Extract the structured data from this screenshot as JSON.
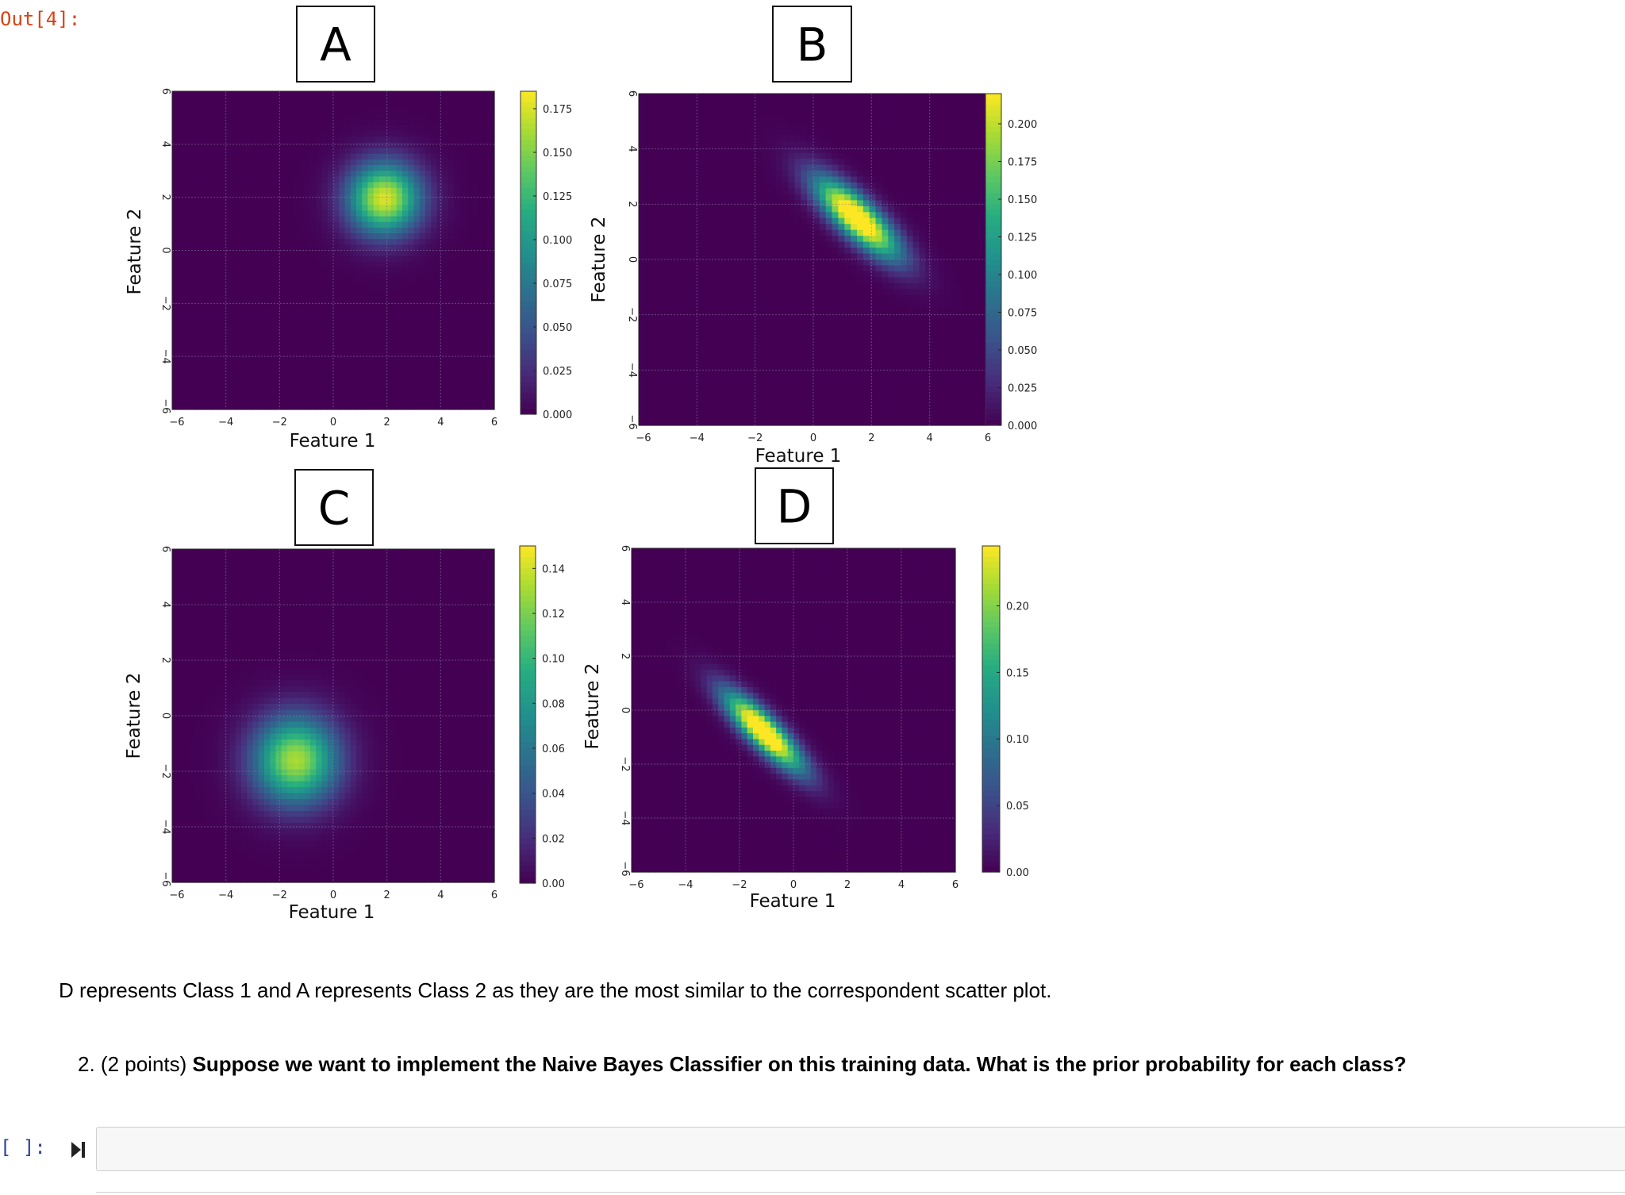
{
  "notebook": {
    "out_prompt": "Out[4]:",
    "in_prompt": "[ ]:",
    "markdown_answer": "D represents Class 1 and A represents Class 2 as they are the most similar to the correspondent scatter plot.",
    "question_number": "2.",
    "question_points": "(2 points)",
    "question_text": "Suppose we want to implement the Naive Bayes Classifier on this training data. What is the prior probability for each class?",
    "code_cell_value": ""
  },
  "colors": {
    "out_prompt": "#d84315",
    "in_prompt": "#303f9f",
    "viridis_low": "#440154",
    "viridis_high": "#fde725"
  },
  "icons": {
    "run": "run-cell-icon"
  },
  "chart_data": [
    {
      "type": "heatmap",
      "label": "A",
      "xlabel": "Feature 1",
      "ylabel": "Feature 2",
      "xlim": [
        -6,
        6
      ],
      "ylim": [
        -6,
        6
      ],
      "xticks": [
        "−6",
        "−4",
        "−2",
        "0",
        "2",
        "4",
        "6"
      ],
      "yticks": [
        "−6",
        "−4",
        "−2",
        "0",
        "2",
        "4",
        "6"
      ],
      "grid": true,
      "gaussian": {
        "mean": [
          1.9,
          1.95
        ],
        "sx": 0.95,
        "sy": 0.95,
        "rho": 0
      },
      "colorbar_ticks": [
        "0.000",
        "0.025",
        "0.050",
        "0.075",
        "0.100",
        "0.125",
        "0.150",
        "0.175"
      ],
      "colorbar_range": [
        0,
        0.185
      ]
    },
    {
      "type": "heatmap",
      "label": "B",
      "xlabel": "Feature 1",
      "ylabel": "Feature 2",
      "xlim": [
        -6,
        6
      ],
      "ylim": [
        -6,
        6
      ],
      "xticks": [
        "−6",
        "−4",
        "−2",
        "0",
        "2",
        "4",
        "6"
      ],
      "yticks": [
        "−6",
        "−4",
        "−2",
        "0",
        "2",
        "4",
        "6"
      ],
      "grid": true,
      "gaussian": {
        "mean": [
          1.5,
          1.5
        ],
        "sx": 1.0,
        "sy": 1.0,
        "rho": -0.8
      },
      "colorbar_ticks": [
        "0.000",
        "0.025",
        "0.050",
        "0.075",
        "0.100",
        "0.125",
        "0.150",
        "0.175",
        "0.200"
      ],
      "colorbar_range": [
        0,
        0.22
      ]
    },
    {
      "type": "heatmap",
      "label": "C",
      "xlabel": "Feature 1",
      "ylabel": "Feature 2",
      "xlim": [
        -6,
        6
      ],
      "ylim": [
        -6,
        6
      ],
      "xticks": [
        "−6",
        "−4",
        "−2",
        "0",
        "2",
        "4",
        "6"
      ],
      "yticks": [
        "−6",
        "−4",
        "−2",
        "0",
        "2",
        "4",
        "6"
      ],
      "grid": true,
      "gaussian": {
        "mean": [
          -1.4,
          -1.6
        ],
        "sx": 1.1,
        "sy": 1.1,
        "rho": 0
      },
      "colorbar_ticks": [
        "0.00",
        "0.02",
        "0.04",
        "0.06",
        "0.08",
        "0.10",
        "0.12",
        "0.14"
      ],
      "colorbar_range": [
        0,
        0.15
      ]
    },
    {
      "type": "heatmap",
      "label": "D",
      "xlabel": "Feature 1",
      "ylabel": "Feature 2",
      "xlim": [
        -6,
        6
      ],
      "ylim": [
        -6,
        6
      ],
      "xticks": [
        "−6",
        "−4",
        "−2",
        "0",
        "2",
        "4",
        "6"
      ],
      "yticks": [
        "−6",
        "−4",
        "−2",
        "0",
        "2",
        "4",
        "6"
      ],
      "grid": true,
      "gaussian": {
        "mean": [
          -1.1,
          -0.8
        ],
        "sx": 1.0,
        "sy": 1.0,
        "rho": -0.85
      },
      "colorbar_ticks": [
        "0.00",
        "0.05",
        "0.10",
        "0.15",
        "0.20"
      ],
      "colorbar_range": [
        0,
        0.245
      ]
    }
  ]
}
